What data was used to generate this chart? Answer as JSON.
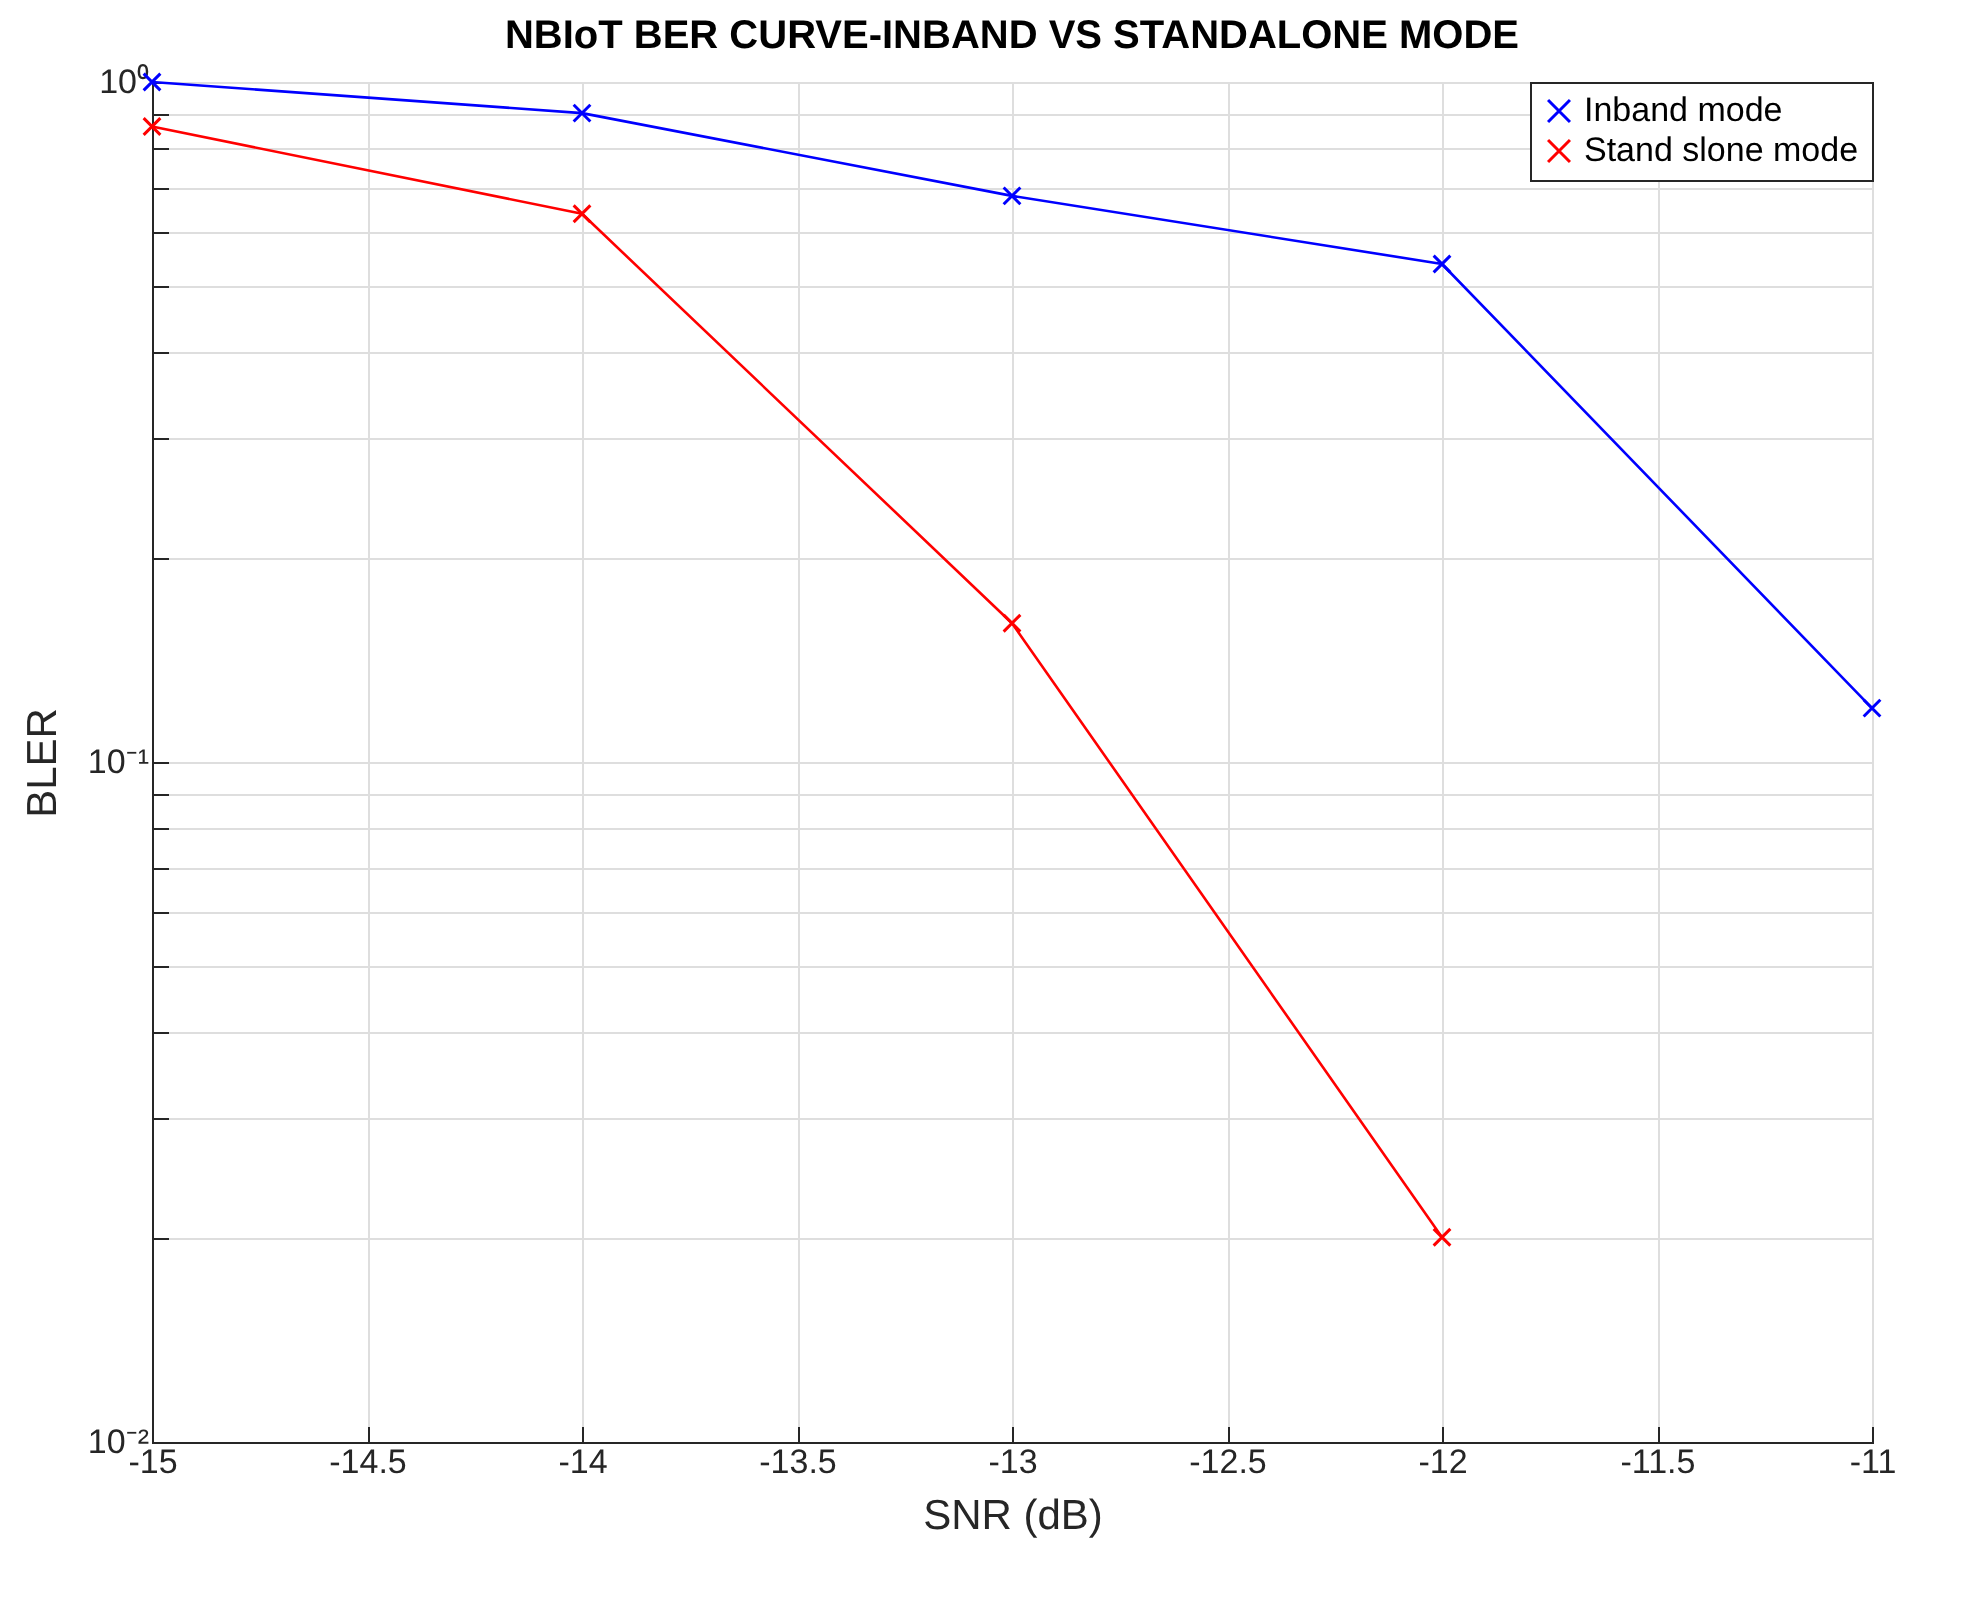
{
  "chart_data": {
    "type": "line",
    "title": "NBIoT BER CURVE-INBAND VS STANDALONE MODE",
    "xlabel": "SNR (dB)",
    "ylabel": "BLER",
    "x": [
      -15,
      -14,
      -13,
      -12,
      -11
    ],
    "series": [
      {
        "name": "Inband mode",
        "color": "#0000ff",
        "values": [
          1.0,
          0.9,
          0.68,
          0.54,
          0.12
        ]
      },
      {
        "name": "Stand slone mode",
        "color": "#ff0000",
        "values": [
          0.86,
          0.64,
          0.16,
          0.02,
          null
        ]
      }
    ],
    "log": "y",
    "xlim": [
      -15,
      -11
    ],
    "xticks": [
      -15,
      -14.5,
      -14,
      -13.5,
      -13,
      -12.5,
      -12,
      -11.5,
      -11
    ],
    "ylim": [
      0.01,
      1
    ],
    "yticks": [
      {
        "value": 0.01,
        "label": "10⁻²"
      },
      {
        "value": 0.02,
        "label": null
      },
      {
        "value": 0.03,
        "label": null
      },
      {
        "value": 0.04,
        "label": null
      },
      {
        "value": 0.05,
        "label": null
      },
      {
        "value": 0.06,
        "label": null
      },
      {
        "value": 0.07,
        "label": null
      },
      {
        "value": 0.08,
        "label": null
      },
      {
        "value": 0.09,
        "label": null
      },
      {
        "value": 0.1,
        "label": "10⁻¹"
      },
      {
        "value": 0.2,
        "label": null
      },
      {
        "value": 0.3,
        "label": null
      },
      {
        "value": 0.4,
        "label": null
      },
      {
        "value": 0.5,
        "label": null
      },
      {
        "value": 0.6,
        "label": null
      },
      {
        "value": 0.7,
        "label": null
      },
      {
        "value": 0.8,
        "label": null
      },
      {
        "value": 0.9,
        "label": null
      },
      {
        "value": 1,
        "label": "10⁰"
      }
    ],
    "grid": true,
    "legend": "top right",
    "marker": "cross",
    "line_style": "solid"
  }
}
